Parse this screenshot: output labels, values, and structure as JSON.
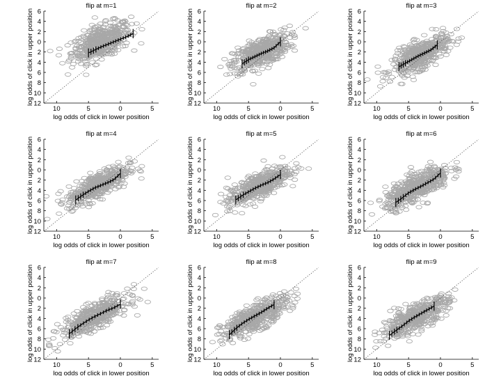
{
  "chart_data": [
    {
      "type": "scatter",
      "title": "flip at m=1",
      "xlabel": "log odds of click in lower position",
      "ylabel": "log odds of click in upper position",
      "xlim": [
        -12,
        6
      ],
      "ylim": [
        -12,
        6
      ],
      "xticks": [
        -10,
        -5,
        0,
        5
      ],
      "xtick_labels": [
        "10",
        "5",
        "0",
        "5"
      ],
      "yticks": [
        6,
        4,
        2,
        0,
        -2,
        -4,
        -6,
        -8,
        -10,
        -12
      ],
      "ytick_labels": [
        "6",
        "4",
        "2",
        "0",
        "2",
        "4",
        "6",
        "8",
        "10",
        "12"
      ],
      "cloud": {
        "center": [
          -3.0,
          0.0
        ],
        "sx": 2.3,
        "sy": 1.9,
        "rho": 0.55
      },
      "mean_line": {
        "x": [
          -5.0,
          -4.0,
          -3.0,
          -2.0,
          -1.0,
          0.0,
          1.0,
          2.0
        ],
        "y": [
          -2.2,
          -1.6,
          -1.0,
          -0.5,
          0.0,
          0.5,
          1.0,
          1.6
        ]
      }
    },
    {
      "type": "scatter",
      "title": "flip at m=2",
      "xlabel": "log odds of click in lower position",
      "ylabel": "log odds of click in upper position",
      "xlim": [
        -12,
        6
      ],
      "ylim": [
        -12,
        6
      ],
      "xticks": [
        -10,
        -5,
        0,
        5
      ],
      "xtick_labels": [
        "10",
        "5",
        "0",
        "5"
      ],
      "yticks": [
        6,
        4,
        2,
        0,
        -2,
        -4,
        -6,
        -8,
        -10,
        -12
      ],
      "ytick_labels": [
        "6",
        "4",
        "2",
        "0",
        "2",
        "4",
        "6",
        "8",
        "10",
        "12"
      ],
      "cloud": {
        "center": [
          -3.0,
          -2.0
        ],
        "sx": 2.2,
        "sy": 1.8,
        "rho": 0.62
      },
      "mean_line": {
        "x": [
          -6.0,
          -5.0,
          -4.0,
          -3.0,
          -2.0,
          -1.0,
          0.0
        ],
        "y": [
          -4.3,
          -3.5,
          -2.9,
          -2.3,
          -1.8,
          -1.2,
          0.0
        ]
      }
    },
    {
      "type": "scatter",
      "title": "flip at m=3",
      "xlabel": "log odds of click in lower position",
      "ylabel": "log odds of click in upper position",
      "xlim": [
        -12,
        6
      ],
      "ylim": [
        -12,
        6
      ],
      "xticks": [
        -10,
        -5,
        0,
        5
      ],
      "xtick_labels": [
        "10",
        "5",
        "0",
        "5"
      ],
      "yticks": [
        6,
        4,
        2,
        0,
        -2,
        -4,
        -6,
        -8,
        -10,
        -12
      ],
      "ytick_labels": [
        "6",
        "4",
        "2",
        "0",
        "2",
        "4",
        "6",
        "8",
        "10",
        "12"
      ],
      "cloud": {
        "center": [
          -3.2,
          -2.6
        ],
        "sx": 2.2,
        "sy": 1.9,
        "rho": 0.7
      },
      "mean_line": {
        "x": [
          -6.5,
          -5.5,
          -4.5,
          -3.5,
          -2.5,
          -1.5,
          -0.5
        ],
        "y": [
          -4.9,
          -4.2,
          -3.5,
          -2.8,
          -2.2,
          -1.6,
          -0.6
        ]
      }
    },
    {
      "type": "scatter",
      "title": "flip at m=4",
      "xlabel": "log odds of click in lower position",
      "ylabel": "log odds of click in upper position",
      "xlim": [
        -12,
        6
      ],
      "ylim": [
        -12,
        6
      ],
      "xticks": [
        -10,
        -5,
        0,
        5
      ],
      "xtick_labels": [
        "10",
        "5",
        "0",
        "5"
      ],
      "yticks": [
        6,
        4,
        2,
        0,
        -2,
        -4,
        -6,
        -8,
        -10,
        -12
      ],
      "ytick_labels": [
        "6",
        "4",
        "2",
        "0",
        "2",
        "4",
        "6",
        "8",
        "10",
        "12"
      ],
      "cloud": {
        "center": [
          -3.5,
          -3.0
        ],
        "sx": 2.4,
        "sy": 1.9,
        "rho": 0.75
      },
      "mean_line": {
        "x": [
          -7.0,
          -6.0,
          -5.0,
          -4.0,
          -3.0,
          -2.0,
          -1.0,
          0.0
        ],
        "y": [
          -5.9,
          -5.0,
          -4.2,
          -3.5,
          -3.0,
          -2.5,
          -1.9,
          -0.7
        ]
      }
    },
    {
      "type": "scatter",
      "title": "flip at m=5",
      "xlabel": "log odds of click in lower position",
      "ylabel": "log odds of click in upper position",
      "xlim": [
        -12,
        6
      ],
      "ylim": [
        -12,
        6
      ],
      "xticks": [
        -10,
        -5,
        0,
        5
      ],
      "xtick_labels": [
        "10",
        "5",
        "0",
        "5"
      ],
      "yticks": [
        6,
        4,
        2,
        0,
        -2,
        -4,
        -6,
        -8,
        -10,
        -12
      ],
      "ytick_labels": [
        "6",
        "4",
        "2",
        "0",
        "2",
        "4",
        "6",
        "8",
        "10",
        "12"
      ],
      "cloud": {
        "center": [
          -3.5,
          -3.2
        ],
        "sx": 2.4,
        "sy": 1.9,
        "rho": 0.75
      },
      "mean_line": {
        "x": [
          -7.0,
          -6.0,
          -5.0,
          -4.0,
          -3.0,
          -2.0,
          -1.0,
          0.0
        ],
        "y": [
          -5.9,
          -5.0,
          -4.3,
          -3.6,
          -3.0,
          -2.5,
          -1.8,
          -0.9
        ]
      }
    },
    {
      "type": "scatter",
      "title": "flip at m=6",
      "xlabel": "log odds of click in lower position",
      "ylabel": "log odds of click in upper position",
      "xlim": [
        -12,
        6
      ],
      "ylim": [
        -12,
        6
      ],
      "xticks": [
        -10,
        -5,
        0,
        5
      ],
      "xtick_labels": [
        "10",
        "5",
        "0",
        "5"
      ],
      "yticks": [
        6,
        4,
        2,
        0,
        -2,
        -4,
        -6,
        -8,
        -10,
        -12
      ],
      "ytick_labels": [
        "6",
        "4",
        "2",
        "0",
        "2",
        "4",
        "6",
        "8",
        "10",
        "12"
      ],
      "cloud": {
        "center": [
          -3.6,
          -3.3
        ],
        "sx": 2.5,
        "sy": 2.0,
        "rho": 0.74
      },
      "mean_line": {
        "x": [
          -7.0,
          -6.0,
          -5.0,
          -4.0,
          -3.0,
          -2.0,
          -1.0,
          0.0
        ],
        "y": [
          -6.4,
          -5.5,
          -4.5,
          -3.8,
          -3.2,
          -2.5,
          -1.8,
          -0.6
        ]
      }
    },
    {
      "type": "scatter",
      "title": "flip at m=7",
      "xlabel": "log odds of click in lower position",
      "ylabel": "log odds of click in upper position",
      "xlim": [
        -12,
        6
      ],
      "ylim": [
        -12,
        6
      ],
      "xticks": [
        -10,
        -5,
        0,
        5
      ],
      "xtick_labels": [
        "10",
        "5",
        "0",
        "5"
      ],
      "yticks": [
        6,
        4,
        2,
        0,
        -2,
        -4,
        -6,
        -8,
        -10,
        -12
      ],
      "ytick_labels": [
        "6",
        "4",
        "2",
        "0",
        "2",
        "4",
        "6",
        "8",
        "10",
        "12"
      ],
      "cloud": {
        "center": [
          -4.0,
          -3.6
        ],
        "sx": 2.6,
        "sy": 2.0,
        "rho": 0.78
      },
      "mean_line": {
        "x": [
          -8.0,
          -7.0,
          -6.0,
          -5.0,
          -4.0,
          -3.0,
          -2.0,
          -1.0,
          0.0
        ],
        "y": [
          -7.0,
          -6.0,
          -5.1,
          -4.3,
          -3.6,
          -3.0,
          -2.4,
          -1.9,
          -1.2
        ]
      }
    },
    {
      "type": "scatter",
      "title": "flip at m=8",
      "xlabel": "log odds of click in lower position",
      "ylabel": "log odds of click in upper position",
      "xlim": [
        -12,
        6
      ],
      "ylim": [
        -12,
        6
      ],
      "xticks": [
        -10,
        -5,
        0,
        5
      ],
      "xtick_labels": [
        "10",
        "5",
        "0",
        "5"
      ],
      "yticks": [
        6,
        4,
        2,
        0,
        -2,
        -4,
        -6,
        -8,
        -10,
        -12
      ],
      "ytick_labels": [
        "6",
        "4",
        "2",
        "0",
        "2",
        "4",
        "6",
        "8",
        "10",
        "12"
      ],
      "cloud": {
        "center": [
          -4.0,
          -3.8
        ],
        "sx": 2.6,
        "sy": 2.0,
        "rho": 0.78
      },
      "mean_line": {
        "x": [
          -8.0,
          -7.0,
          -6.0,
          -5.0,
          -4.0,
          -3.0,
          -2.0,
          -1.0
        ],
        "y": [
          -7.2,
          -6.0,
          -5.0,
          -4.2,
          -3.5,
          -2.8,
          -2.0,
          -1.3
        ]
      }
    },
    {
      "type": "scatter",
      "title": "flip at m=9",
      "xlabel": "log odds of click in lower position",
      "ylabel": "log odds of click in upper position",
      "xlim": [
        -12,
        6
      ],
      "ylim": [
        -12,
        6
      ],
      "xticks": [
        -10,
        -5,
        0,
        5
      ],
      "xtick_labels": [
        "10",
        "5",
        "0",
        "5"
      ],
      "yticks": [
        6,
        4,
        2,
        0,
        -2,
        -4,
        -6,
        -8,
        -10,
        -12
      ],
      "ytick_labels": [
        "6",
        "4",
        "2",
        "0",
        "2",
        "4",
        "6",
        "8",
        "10",
        "12"
      ],
      "cloud": {
        "center": [
          -4.0,
          -3.8
        ],
        "sx": 2.6,
        "sy": 2.0,
        "rho": 0.78
      },
      "mean_line": {
        "x": [
          -8.0,
          -7.0,
          -6.0,
          -5.0,
          -4.0,
          -3.0,
          -2.0,
          -1.0
        ],
        "y": [
          -7.3,
          -6.4,
          -5.5,
          -4.5,
          -3.7,
          -3.0,
          -2.3,
          -1.6
        ]
      }
    }
  ],
  "colors": {
    "cloud": "#a8a8a8",
    "mean": "#000000",
    "diagonal": "#444444"
  }
}
